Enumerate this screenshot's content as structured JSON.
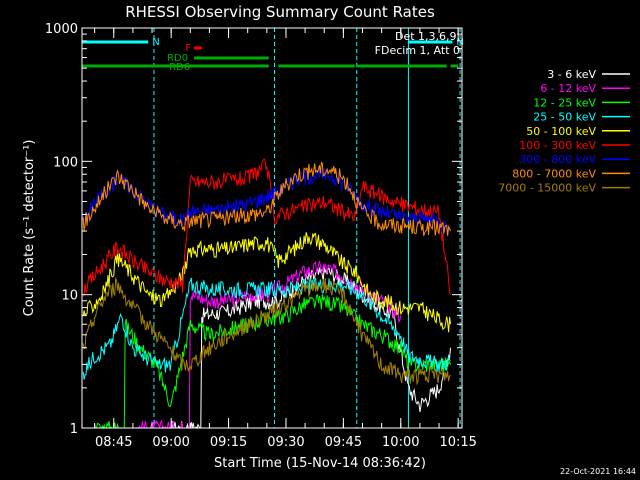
{
  "chart_data": {
    "type": "line",
    "title": "RHESSI Observing Summary Count Rates",
    "xlabel": "Start Time (15-Nov-14 08:36:42)",
    "ylabel": "Count Rate (s⁻¹ detector⁻¹)",
    "yscale": "log",
    "ylim": [
      1,
      1000
    ],
    "xlim": [
      "08:36:42",
      "10:16:00"
    ],
    "x_ticks": [
      "08:45",
      "09:00",
      "09:15",
      "09:30",
      "09:45",
      "10:00",
      "10:15"
    ],
    "y_ticks": [
      "1",
      "10",
      "100",
      "1000"
    ],
    "grid": false,
    "legend_placement": "right",
    "legend_header": [
      "Det 1,3,6,9,",
      "FDecim 1, Att 0"
    ],
    "footer": "22-Oct-2021 16:44",
    "annotations": [
      {
        "label": "N",
        "color": "#00ffff",
        "start": "08:36:42",
        "end": "08:54:00"
      },
      {
        "label": "N",
        "color": "#00ffff",
        "start": "10:02:00",
        "end": "10:13:30"
      },
      {
        "label": "F",
        "color": "#ff0000",
        "start": "09:06:00",
        "end": "09:08:00"
      },
      {
        "label": "RD0",
        "color": "#00aa00",
        "start": "09:06:00",
        "end": "09:25:30"
      },
      {
        "label": "RD6",
        "color": "#00aa00",
        "start": "08:36:42",
        "end": "09:06:00"
      }
    ],
    "vlines": [
      {
        "time": "08:36:42",
        "color": "#00ffff",
        "style": "solid"
      },
      {
        "time": "08:55:30",
        "color": "#00ffff",
        "style": "dashed"
      },
      {
        "time": "10:02:00",
        "color": "#00ffff",
        "style": "solid"
      },
      {
        "time": "10:15:30",
        "color": "#00ffff",
        "style": "dashed"
      },
      {
        "time": "09:27:00",
        "color": "#00ffff",
        "style": "dashed"
      },
      {
        "time": "09:48:30",
        "color": "#00ffff",
        "style": "dashed"
      }
    ],
    "green_bar_segments": [
      {
        "start": "08:36:42",
        "end": "09:06:00"
      },
      {
        "start": "09:06:00",
        "end": "09:25:30"
      },
      {
        "start": "09:28:00",
        "end": "09:48:00"
      },
      {
        "start": "09:48:30",
        "end": "10:12:00"
      },
      {
        "start": "10:13:00",
        "end": "10:15:00"
      }
    ],
    "series": [
      {
        "name": "3 - 6 keV",
        "color": "#ffffff",
        "points": [
          [
            "09:00",
            0
          ],
          [
            "09:08",
            7
          ],
          [
            "09:15",
            7.5
          ],
          [
            "09:22",
            9
          ],
          [
            "09:28",
            9
          ],
          [
            "09:35",
            13
          ],
          [
            "09:41",
            15
          ],
          [
            "09:47",
            12
          ],
          [
            "09:52",
            9
          ],
          [
            "09:58",
            7
          ],
          [
            "10:02",
            2
          ],
          [
            "10:05",
            1.5
          ],
          [
            "10:10",
            2
          ],
          [
            "10:13",
            4
          ]
        ]
      },
      {
        "name": "6 - 12 keV",
        "color": "#ff00ff",
        "points": [
          [
            "08:50",
            0
          ],
          [
            "09:05",
            10
          ],
          [
            "09:10",
            9
          ],
          [
            "09:15",
            9
          ],
          [
            "09:20",
            10
          ],
          [
            "09:25",
            10
          ],
          [
            "09:30",
            12
          ],
          [
            "09:35",
            15
          ],
          [
            "09:40",
            16
          ],
          [
            "09:45",
            14
          ],
          [
            "09:50",
            11
          ],
          [
            "09:55",
            9
          ],
          [
            "10:00",
            7
          ]
        ]
      },
      {
        "name": "12 - 25 keV",
        "color": "#00ff00",
        "points": [
          [
            "08:40",
            0
          ],
          [
            "08:48",
            6
          ],
          [
            "08:52",
            4
          ],
          [
            "08:56",
            3
          ],
          [
            "09:00",
            1.5
          ],
          [
            "09:05",
            6
          ],
          [
            "09:10",
            5
          ],
          [
            "09:15",
            5.5
          ],
          [
            "09:20",
            6
          ],
          [
            "09:25",
            6.5
          ],
          [
            "09:30",
            7
          ],
          [
            "09:35",
            8.5
          ],
          [
            "09:40",
            9
          ],
          [
            "09:45",
            8
          ],
          [
            "09:50",
            6
          ],
          [
            "09:55",
            5
          ],
          [
            "10:00",
            4
          ],
          [
            "10:02",
            3
          ],
          [
            "10:10",
            3
          ],
          [
            "10:13",
            3
          ]
        ]
      },
      {
        "name": "25 - 50 keV",
        "color": "#00ffff",
        "points": [
          [
            "08:37",
            2.6
          ],
          [
            "08:40",
            3.5
          ],
          [
            "08:44",
            4.2
          ],
          [
            "08:47",
            7
          ],
          [
            "08:50",
            4
          ],
          [
            "08:53",
            3.5
          ],
          [
            "08:56",
            3
          ],
          [
            "09:00",
            3
          ],
          [
            "09:05",
            12
          ],
          [
            "09:10",
            11
          ],
          [
            "09:15",
            11
          ],
          [
            "09:20",
            11
          ],
          [
            "09:25",
            11
          ],
          [
            "09:30",
            11
          ],
          [
            "09:35",
            11.5
          ],
          [
            "09:40",
            12
          ],
          [
            "09:45",
            12
          ],
          [
            "09:50",
            10
          ],
          [
            "09:55",
            7
          ],
          [
            "10:00",
            5
          ],
          [
            "10:02",
            3.5
          ],
          [
            "10:10",
            3
          ],
          [
            "10:13",
            3.2
          ]
        ]
      },
      {
        "name": "50 - 100 keV",
        "color": "#ffff00",
        "points": [
          [
            "08:37",
            7
          ],
          [
            "08:42",
            10
          ],
          [
            "08:46",
            19
          ],
          [
            "08:50",
            14
          ],
          [
            "08:54",
            10
          ],
          [
            "08:58",
            9
          ],
          [
            "09:03",
            14
          ],
          [
            "09:05",
            22
          ],
          [
            "09:10",
            22
          ],
          [
            "09:15",
            22
          ],
          [
            "09:20",
            24
          ],
          [
            "09:25",
            25
          ],
          [
            "09:28",
            18
          ],
          [
            "09:32",
            22
          ],
          [
            "09:36",
            28
          ],
          [
            "09:40",
            24
          ],
          [
            "09:45",
            17
          ],
          [
            "09:48",
            15
          ],
          [
            "09:52",
            10
          ],
          [
            "09:56",
            9
          ],
          [
            "10:00",
            8
          ],
          [
            "10:05",
            8
          ],
          [
            "10:10",
            6.5
          ],
          [
            "10:13",
            6
          ]
        ]
      },
      {
        "name": "100 - 300 keV",
        "color": "#ff0000",
        "points": [
          [
            "08:37",
            11
          ],
          [
            "08:40",
            14
          ],
          [
            "08:43",
            18
          ],
          [
            "08:46",
            23
          ],
          [
            "08:50",
            18
          ],
          [
            "08:54",
            15
          ],
          [
            "08:58",
            13
          ],
          [
            "09:03",
            12
          ],
          [
            "09:05",
            70
          ],
          [
            "09:10",
            70
          ],
          [
            "09:15",
            72
          ],
          [
            "09:20",
            75
          ],
          [
            "09:25",
            95
          ],
          [
            "09:27",
            38
          ],
          [
            "09:30",
            42
          ],
          [
            "09:35",
            46
          ],
          [
            "09:40",
            50
          ],
          [
            "09:45",
            42
          ],
          [
            "09:48",
            38
          ],
          [
            "09:50",
            65
          ],
          [
            "09:55",
            55
          ],
          [
            "10:00",
            48
          ],
          [
            "10:05",
            44
          ],
          [
            "10:10",
            42
          ],
          [
            "10:13",
            10
          ]
        ]
      },
      {
        "name": "300 - 800 keV",
        "color": "#0000ff",
        "points": [
          [
            "08:37",
            36
          ],
          [
            "08:40",
            48
          ],
          [
            "08:43",
            62
          ],
          [
            "08:46",
            75
          ],
          [
            "08:50",
            62
          ],
          [
            "08:54",
            48
          ],
          [
            "08:58",
            40
          ],
          [
            "09:03",
            36
          ],
          [
            "09:05",
            42
          ],
          [
            "09:10",
            43
          ],
          [
            "09:15",
            45
          ],
          [
            "09:20",
            48
          ],
          [
            "09:25",
            55
          ],
          [
            "09:28",
            60
          ],
          [
            "09:33",
            75
          ],
          [
            "09:38",
            80
          ],
          [
            "09:42",
            78
          ],
          [
            "09:46",
            65
          ],
          [
            "09:50",
            48
          ],
          [
            "09:55",
            42
          ],
          [
            "10:00",
            38
          ],
          [
            "10:05",
            37
          ],
          [
            "10:10",
            36
          ],
          [
            "10:13",
            30
          ]
        ]
      },
      {
        "name": "800 - 7000 keV",
        "color": "#ff8c00",
        "points": [
          [
            "08:37",
            34
          ],
          [
            "08:40",
            45
          ],
          [
            "08:43",
            60
          ],
          [
            "08:46",
            78
          ],
          [
            "08:50",
            62
          ],
          [
            "08:54",
            45
          ],
          [
            "08:58",
            38
          ],
          [
            "09:03",
            34
          ],
          [
            "09:05",
            36
          ],
          [
            "09:10",
            37
          ],
          [
            "09:15",
            38
          ],
          [
            "09:20",
            40
          ],
          [
            "09:25",
            42
          ],
          [
            "09:28",
            58
          ],
          [
            "09:33",
            80
          ],
          [
            "09:38",
            88
          ],
          [
            "09:42",
            86
          ],
          [
            "09:46",
            70
          ],
          [
            "09:50",
            42
          ],
          [
            "09:55",
            34
          ],
          [
            "10:00",
            33
          ],
          [
            "10:05",
            32
          ],
          [
            "10:10",
            32
          ],
          [
            "10:13",
            30
          ]
        ]
      },
      {
        "name": "7000 - 15000 keV",
        "color": "#a08000",
        "points": [
          [
            "08:37",
            4
          ],
          [
            "08:40",
            7
          ],
          [
            "08:43",
            10
          ],
          [
            "08:46",
            12
          ],
          [
            "08:50",
            8
          ],
          [
            "08:54",
            6
          ],
          [
            "08:58",
            4.5
          ],
          [
            "09:03",
            3
          ],
          [
            "09:05",
            3
          ],
          [
            "09:10",
            4
          ],
          [
            "09:15",
            5
          ],
          [
            "09:20",
            6
          ],
          [
            "09:25",
            7
          ],
          [
            "09:30",
            8.5
          ],
          [
            "09:35",
            11
          ],
          [
            "09:40",
            12
          ],
          [
            "09:45",
            10
          ],
          [
            "09:50",
            5
          ],
          [
            "09:55",
            3
          ],
          [
            "10:00",
            2.5
          ],
          [
            "10:05",
            2.5
          ],
          [
            "10:10",
            2.5
          ],
          [
            "10:13",
            2.5
          ]
        ]
      }
    ]
  }
}
